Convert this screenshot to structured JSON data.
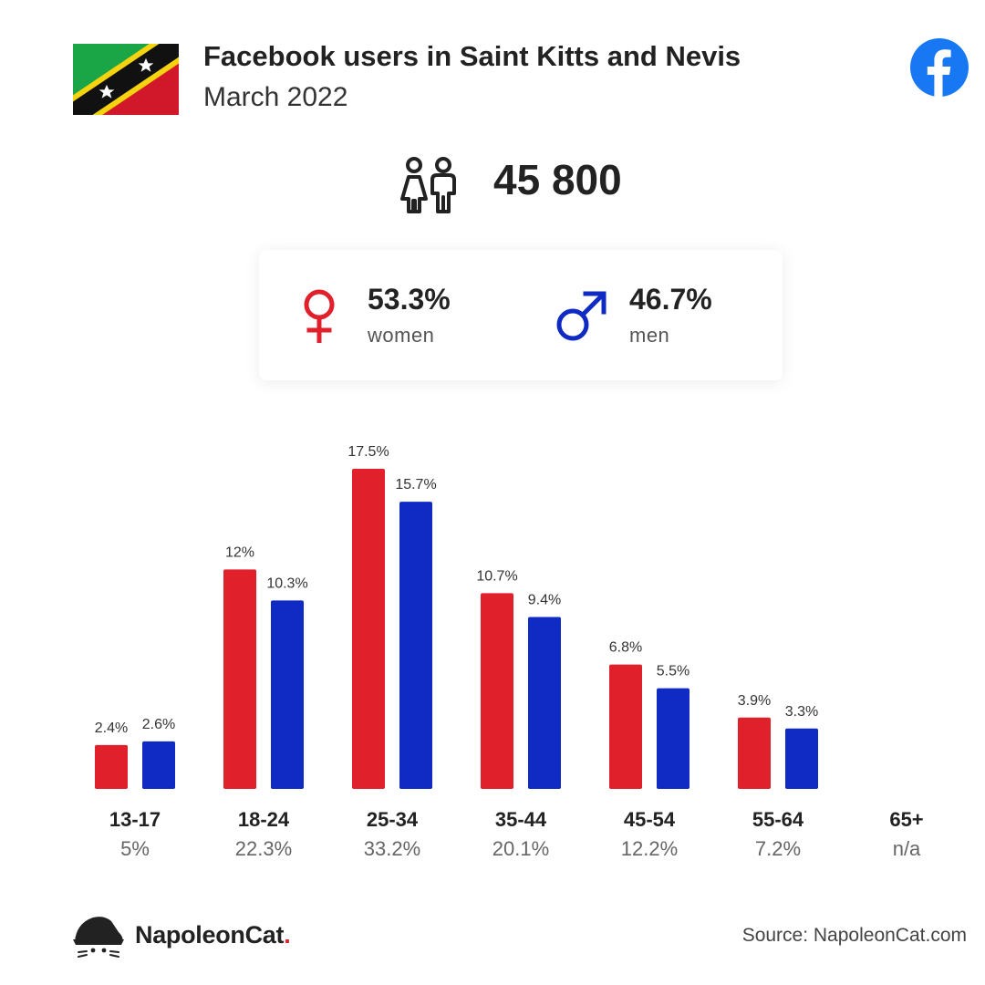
{
  "header": {
    "title": "Facebook users in Saint Kitts and Nevis",
    "subtitle": "March 2022"
  },
  "total": {
    "value": "45 800"
  },
  "gender": {
    "women": {
      "pct": "53.3%",
      "label": "women"
    },
    "men": {
      "pct": "46.7%",
      "label": "men"
    }
  },
  "colors": {
    "women": "#e0202b",
    "men": "#0f2bc4",
    "facebook": "#1877f2"
  },
  "chart_data": {
    "type": "bar",
    "categories": [
      "13-17",
      "18-24",
      "25-34",
      "35-44",
      "45-54",
      "55-64",
      "65+"
    ],
    "totals": [
      "5%",
      "22.3%",
      "33.2%",
      "20.1%",
      "12.2%",
      "7.2%",
      "n/a"
    ],
    "series": [
      {
        "name": "women",
        "values": [
          2.4,
          12,
          17.5,
          10.7,
          6.8,
          3.9,
          null
        ],
        "labels": [
          "2.4%",
          "12%",
          "17.5%",
          "10.7%",
          "6.8%",
          "3.9%",
          ""
        ]
      },
      {
        "name": "men",
        "values": [
          2.6,
          10.3,
          15.7,
          9.4,
          5.5,
          3.3,
          null
        ],
        "labels": [
          "2.6%",
          "10.3%",
          "15.7%",
          "9.4%",
          "5.5%",
          "3.3%",
          ""
        ]
      }
    ],
    "ylim": [
      0,
      17.5
    ],
    "legend": "none",
    "grid": false
  },
  "footer": {
    "brand": "NapoleonCat",
    "brand_dot": ".",
    "source": "Source: NapoleonCat.com"
  }
}
